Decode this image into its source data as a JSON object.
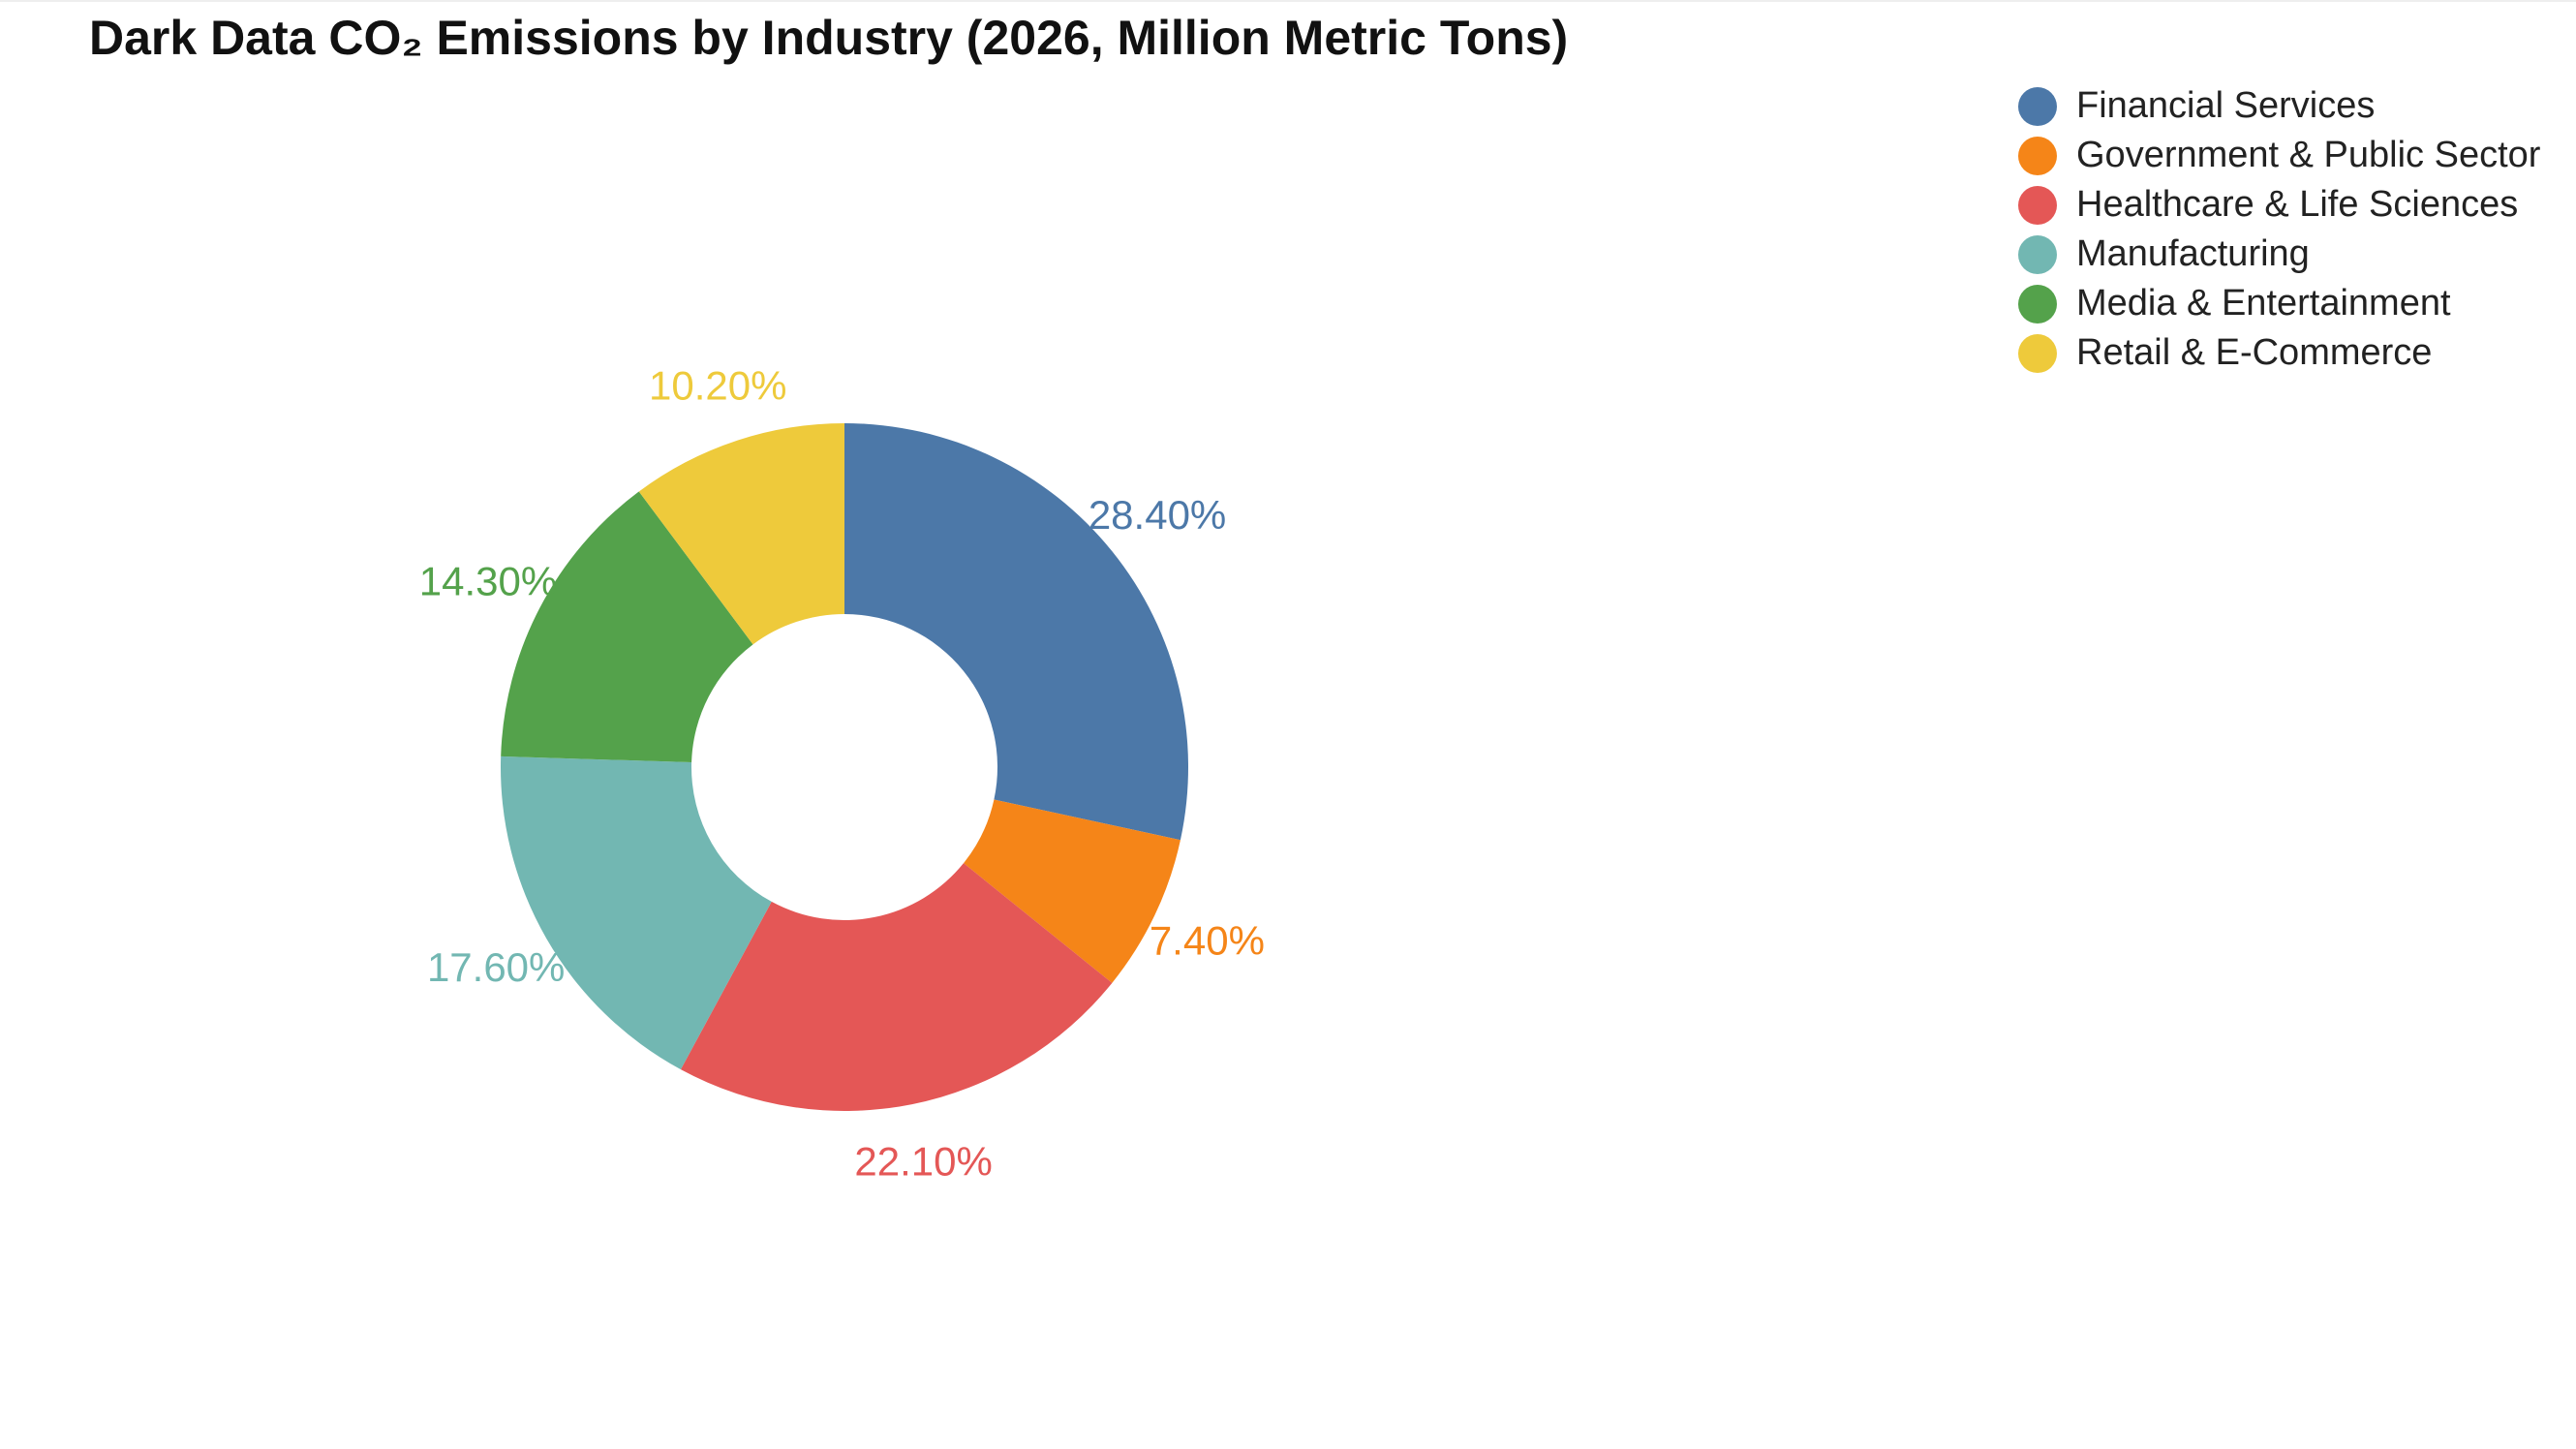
{
  "chart_data": {
    "type": "pie",
    "donut": true,
    "title": "Dark Data CO₂ Emissions by Industry (2026, Million Metric Tons)",
    "categories": [
      "Financial Services",
      "Government & Public Sector",
      "Healthcare & Life Sciences",
      "Manufacturing",
      "Media & Entertainment",
      "Retail & E-Commerce"
    ],
    "values": [
      28.4,
      7.4,
      22.1,
      17.6,
      14.3,
      10.2
    ],
    "data_labels": [
      "28.40%",
      "7.40%",
      "22.10%",
      "17.60%",
      "14.30%",
      "10.20%"
    ],
    "colors": [
      "#4C78A8",
      "#F58518",
      "#E45756",
      "#72B7B2",
      "#54A24B",
      "#EECA3B"
    ],
    "legend_position": "top-right",
    "start_angle": "12 o'clock",
    "direction": "clockwise"
  }
}
